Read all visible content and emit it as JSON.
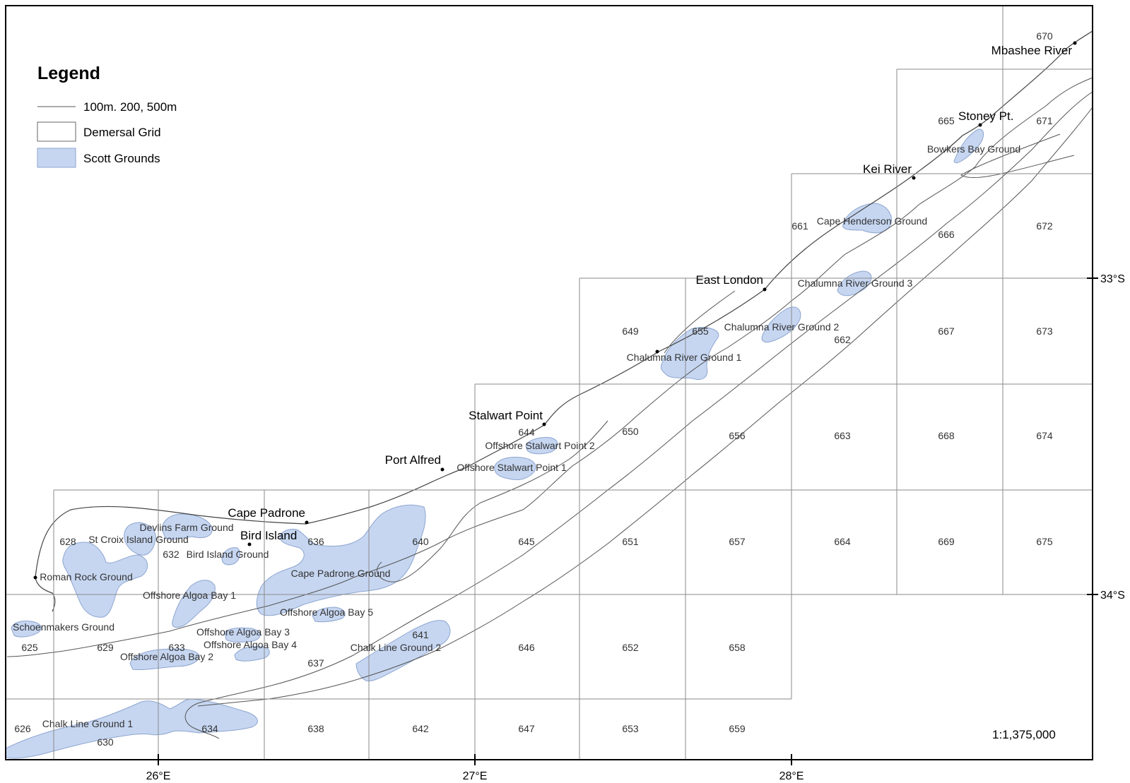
{
  "legend": {
    "title": "Legend",
    "items": [
      {
        "label": "100m. 200, 500m",
        "symbol": "line"
      },
      {
        "label": "Demersal Grid",
        "symbol": "white-box"
      },
      {
        "label": "Scott Grounds",
        "symbol": "blue-box"
      }
    ]
  },
  "scale": "1:1,375,000",
  "colors": {
    "ground_fill": "#c6d6f1",
    "grid_stroke": "#8a8a8a",
    "frame": "#000000"
  },
  "axis": {
    "x_ticks": [
      "26°E",
      "27°E",
      "28°E"
    ],
    "y_ticks": [
      "33°S",
      "34°S"
    ]
  },
  "places": [
    "Mbashee River",
    "Stoney Pt.",
    "Kei River",
    "East London",
    "Stalwart Point",
    "Port Alfred",
    "Cape Padrone",
    "Bird Island"
  ],
  "grid_cells": [
    "670",
    "671",
    "665",
    "672",
    "666",
    "661",
    "667",
    "673",
    "649",
    "655",
    "662",
    "650",
    "656",
    "663",
    "668",
    "674",
    "644",
    "645",
    "651",
    "657",
    "664",
    "669",
    "675",
    "628",
    "636",
    "640",
    "632",
    "625",
    "629",
    "633",
    "637",
    "641",
    "646",
    "652",
    "658",
    "626",
    "630",
    "634",
    "638",
    "642",
    "647",
    "653",
    "659"
  ],
  "grounds": [
    "Bowkers Bay Ground",
    "Cape Henderson Ground",
    "Chalumna River Ground 3",
    "Chalumna River Ground 2",
    "Chalumna River Ground 1",
    "Offshore Stalwart Point 2",
    "Offshore Stalwart Point 1",
    "Devlins Farm Ground",
    "St Croix Island Ground",
    "Bird Island Ground",
    "Roman Rock Ground",
    "Cape Padrone Ground",
    "Offshore Algoa Bay 1",
    "Offshore Algoa Bay 5",
    "Schoenmakers Ground",
    "Offshore Algoa Bay 3",
    "Offshore Algoa Bay 4",
    "Offshore Algoa Bay 2",
    "Chalk Line Ground 2",
    "Chalk Line Ground 1"
  ]
}
